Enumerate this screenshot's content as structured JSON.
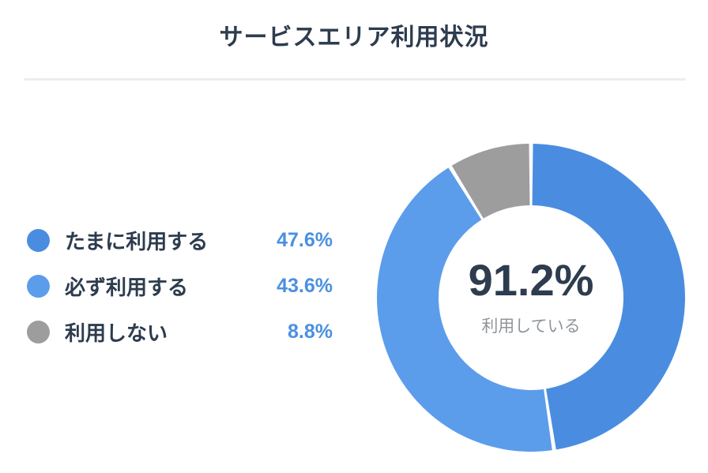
{
  "chart_data": {
    "type": "pie",
    "subtype": "donut",
    "title": "サービスエリア利用状況",
    "segments": [
      {
        "label": "たまに利用する",
        "value": 47.6,
        "display": "47.6%",
        "color": "#4a8de0"
      },
      {
        "label": "必ず利用する",
        "value": 43.6,
        "display": "43.6%",
        "color": "#5b9deb"
      },
      {
        "label": "利用しない",
        "value": 8.8,
        "display": "8.8%",
        "color": "#9d9d9d"
      }
    ],
    "center": {
      "value": "91.2%",
      "label": "利用している"
    },
    "start_angle_deg": 0,
    "direction": "clockwise",
    "inner_radius_ratio": 0.6,
    "gap_between_segments": true,
    "legend_position": "left",
    "colors": {
      "title_text": "#2d3c4e",
      "legend_label_text": "#2d3c4e",
      "legend_value_text": "#4a90e2",
      "center_value_text": "#2d3c4e",
      "center_label_text": "#8f959c",
      "divider": "#ededed",
      "background": "#ffffff"
    }
  }
}
